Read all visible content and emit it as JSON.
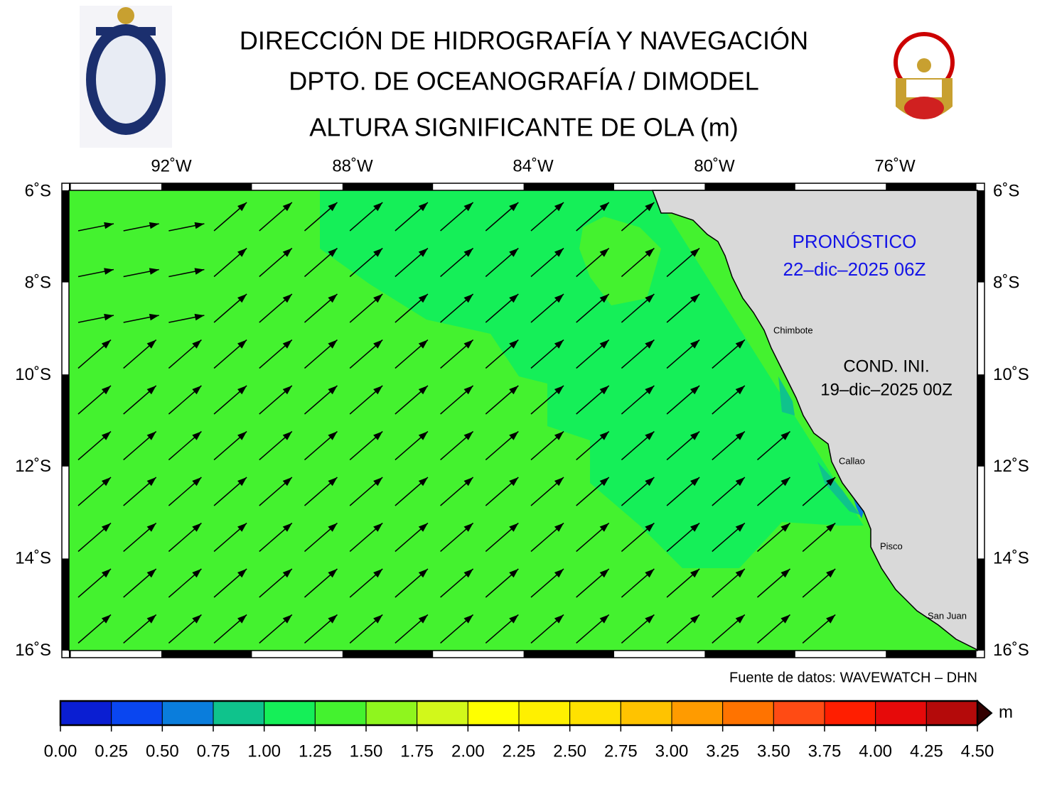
{
  "header": {
    "title_lines": [
      "DIRECCIÓN DE HIDROGRAFÍA Y NAVEGACIÓN",
      "DPTO. DE OCEANOGRAFÍA / DIMODEL",
      "ALTURA SIGNIFICANTE DE OLA (m)"
    ]
  },
  "map": {
    "lon_labels": [
      "92˚W",
      "88˚W",
      "84˚W",
      "80˚W",
      "76˚W"
    ],
    "lat_labels": [
      "6˚S",
      "8˚S",
      "10˚S",
      "12˚S",
      "14˚S",
      "16˚S"
    ],
    "forecast_label": "PRONÓSTICO",
    "forecast_date": "22–dic–2025 06Z",
    "init_label": "COND. INI.",
    "init_date": "19–dic–2025 00Z",
    "places": [
      "Chimbote",
      "Callao",
      "Pisco",
      "San Juan"
    ],
    "source": "Fuente de datos: WAVEWATCH – DHN"
  },
  "colorbar": {
    "labels": [
      "0.00",
      "0.25",
      "0.50",
      "0.75",
      "1.00",
      "1.25",
      "1.50",
      "1.75",
      "2.00",
      "2.25",
      "2.50",
      "2.75",
      "3.00",
      "3.25",
      "3.50",
      "3.75",
      "4.00",
      "4.25",
      "4.50"
    ],
    "colors": [
      "#0a1ed2",
      "#0a46f0",
      "#0a7ddc",
      "#0fc38c",
      "#15ef58",
      "#44f22f",
      "#8ff51e",
      "#d2f81a",
      "#ffff00",
      "#fff000",
      "#ffe100",
      "#ffc300",
      "#ff9b00",
      "#ff7300",
      "#ff4b14",
      "#ff1e00",
      "#e60a0a",
      "#b40a0a"
    ],
    "unit": "m"
  }
}
